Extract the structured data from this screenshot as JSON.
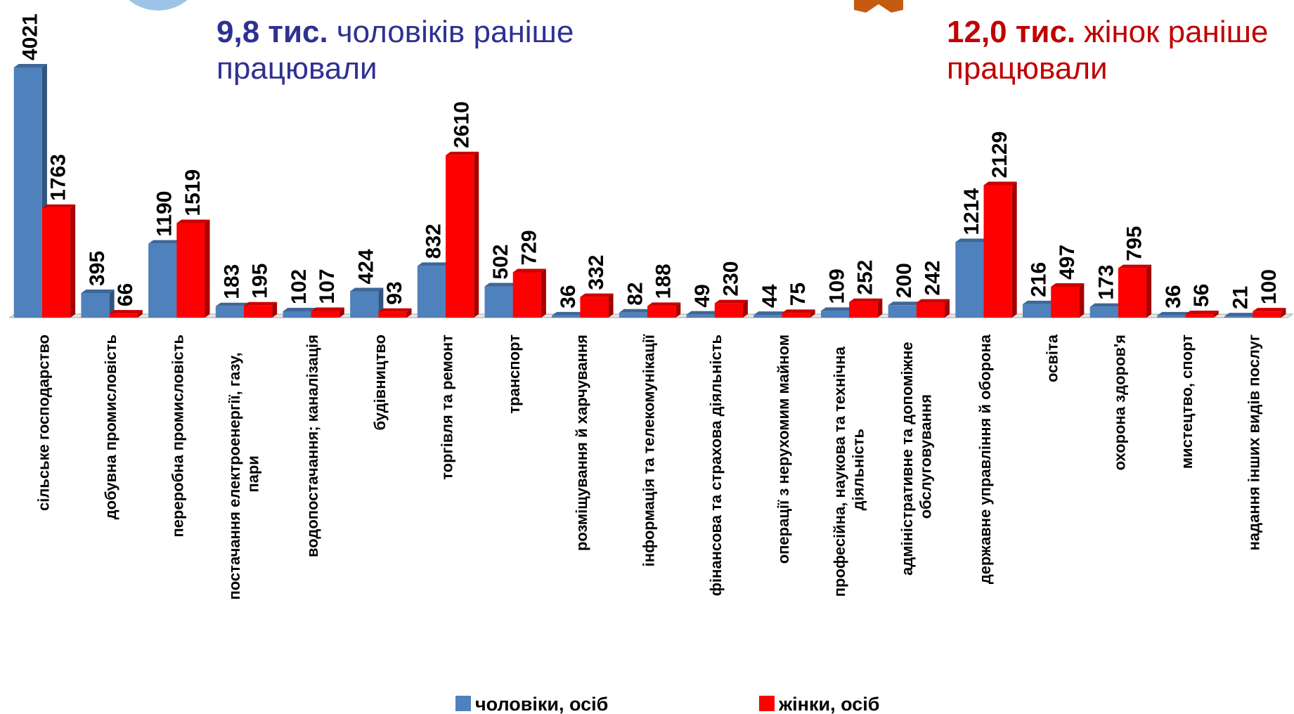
{
  "chart_data": {
    "type": "bar",
    "notes": [
      {
        "bold": "9,8 тис.",
        "text": "чоловіків раніше",
        "line2": "працювали",
        "color": "#2e3192"
      },
      {
        "bold": "12,0 тис.",
        "text": "жінок раніше",
        "line2": "працювали",
        "color": "#c00000"
      }
    ],
    "categories": [
      "сільське господарство",
      "добувна промисловість",
      "переробна промисловість",
      "постачання електроенергії, газу, пари",
      "водопостачання; каналізація",
      "будівництво",
      "торгівля та ремонт",
      "транспорт",
      "розміщування й харчування",
      "інформація та телекомунікації",
      "фінансова та страхова діяльність",
      "операції з нерухомим майном",
      "професійна, наукова та технічна діяльність",
      "адміністративне та допоміжне обслуговування",
      "державне управління й оборона",
      "освіта",
      "охорона здоров'я",
      "мистецтво, спорт",
      "надання інших видів послуг"
    ],
    "series": [
      {
        "name": "чоловіки, осіб",
        "color": "#4f81bd",
        "values": [
          4021,
          395,
          1190,
          183,
          102,
          424,
          832,
          502,
          36,
          82,
          49,
          44,
          109,
          200,
          1214,
          216,
          173,
          36,
          21
        ]
      },
      {
        "name": "жінки, осіб",
        "color": "#ff0000",
        "values": [
          1763,
          66,
          1519,
          195,
          107,
          93,
          2610,
          729,
          332,
          188,
          230,
          75,
          252,
          242,
          2129,
          497,
          795,
          56,
          100
        ]
      }
    ]
  }
}
